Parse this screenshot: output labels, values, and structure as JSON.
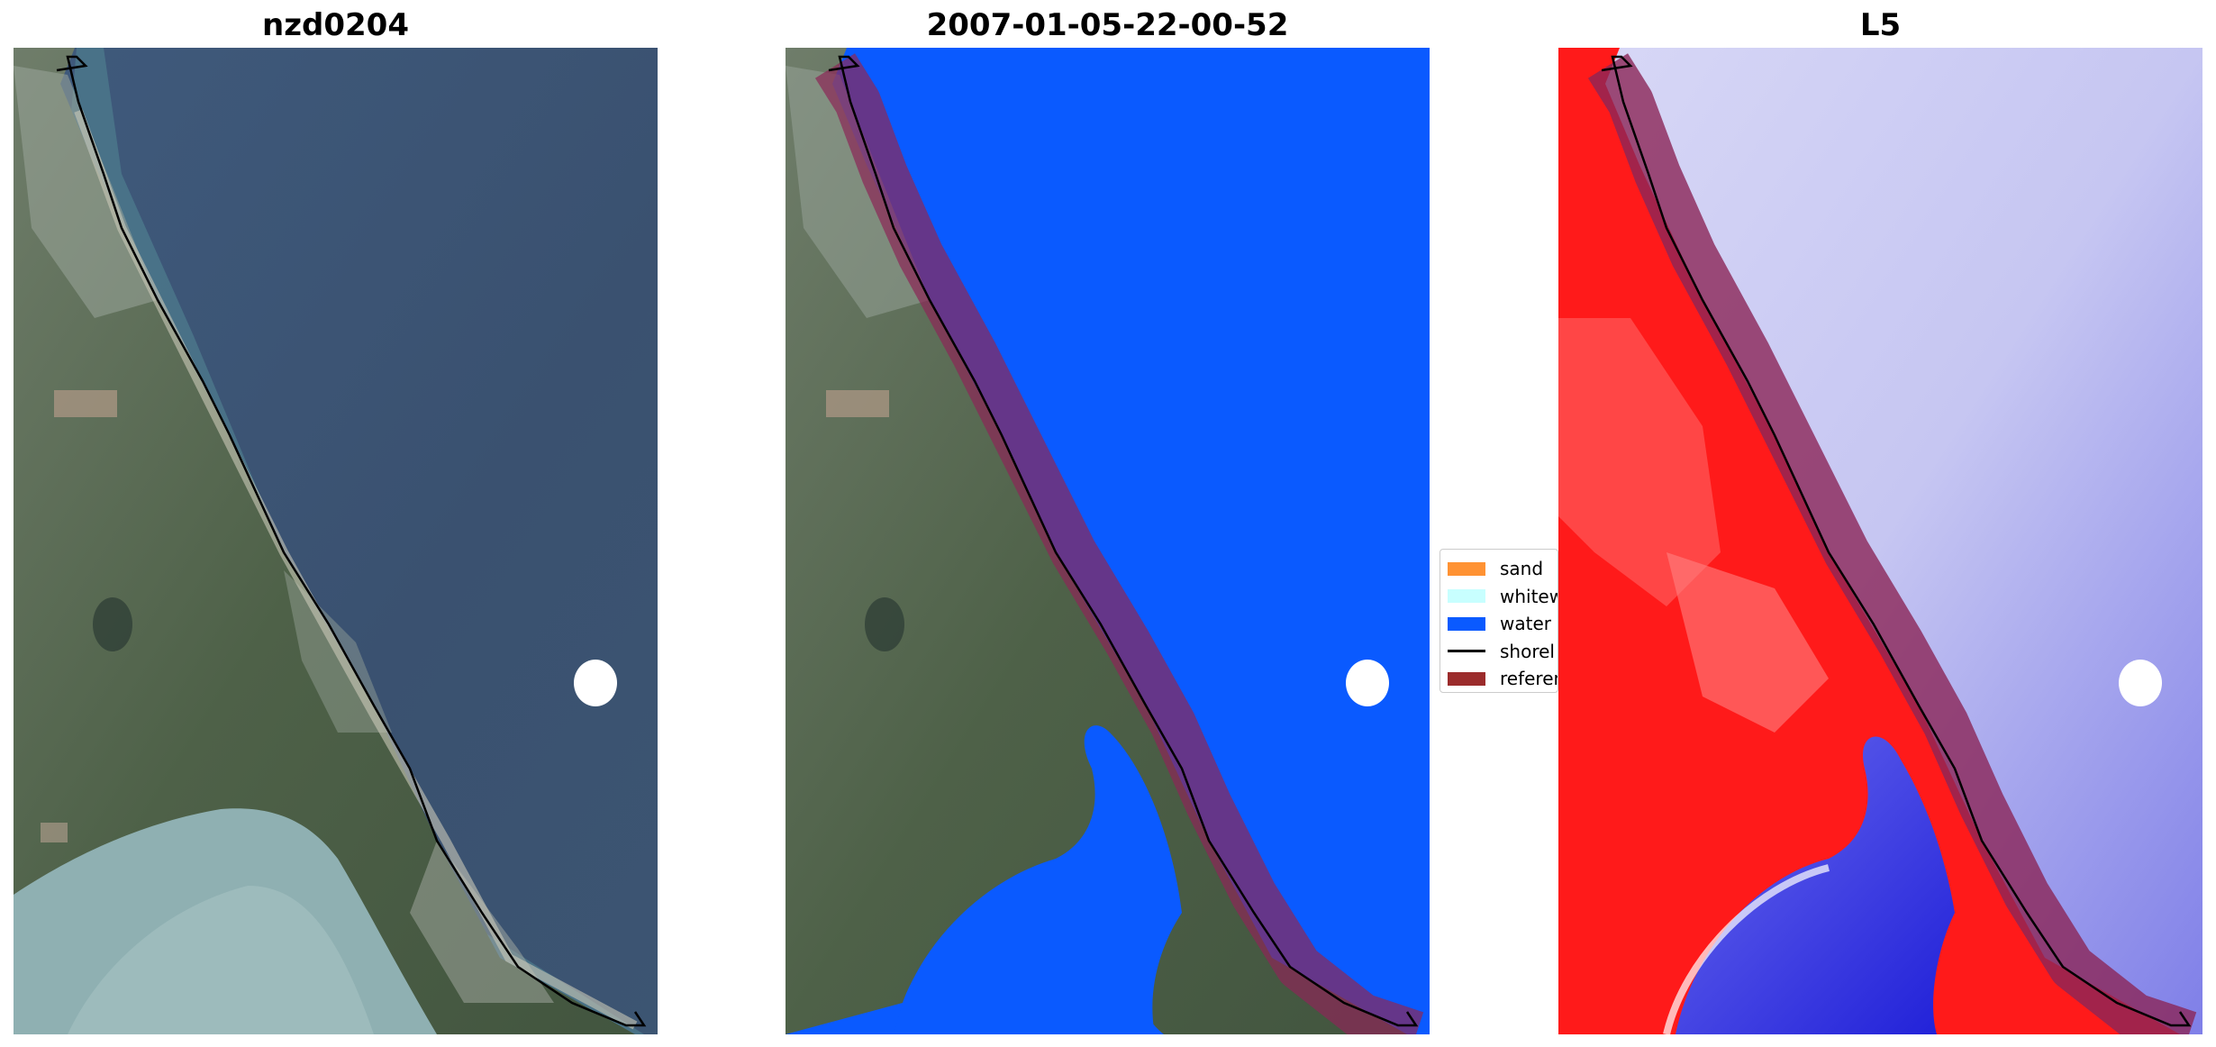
{
  "panels": [
    {
      "title": "nzd0204"
    },
    {
      "title": "2007-01-05-22-00-52"
    },
    {
      "title": "L5"
    }
  ],
  "legend": {
    "items": [
      {
        "label": "sand",
        "color": "#ff9233"
      },
      {
        "label": "whitew",
        "color": "#c8ffff"
      },
      {
        "label": "water",
        "color": "#0a5aff"
      },
      {
        "label": "shorel",
        "color": "#000000"
      },
      {
        "label": "referen",
        "color": "#9b2b2b"
      }
    ]
  },
  "colors": {
    "ocean_rgb": "#3e5577",
    "classified_water": "#0a5aff",
    "reference_buffer": "#8b2657",
    "shoreline": "#000000",
    "index_land": "#ff1a1a",
    "index_water": "#5a5aee"
  }
}
